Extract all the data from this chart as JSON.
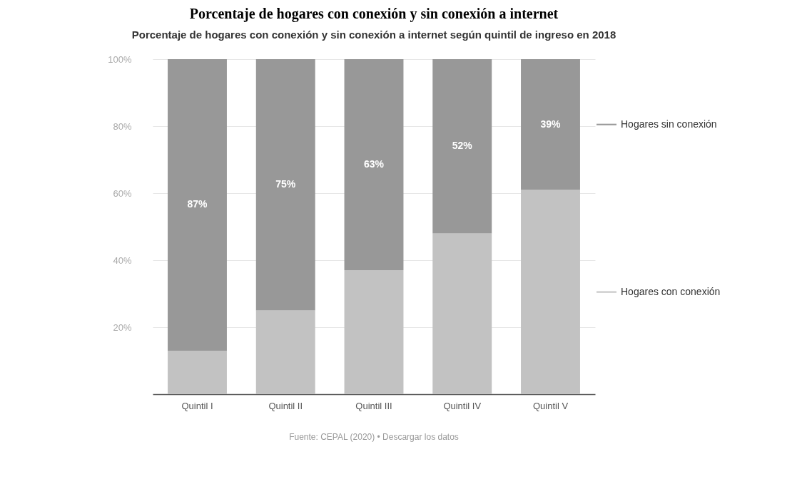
{
  "chart_data": {
    "type": "bar",
    "title": "Porcentaje de hogares con conexión y sin conexión a internet",
    "subtitle": "Porcentaje de hogares con conexión y sin conexión a internet según quintil de ingreso en 2018",
    "categories": [
      "Quintil I",
      "Quintil II",
      "Quintil III",
      "Quintil IV",
      "Quintil V"
    ],
    "stacked": true,
    "series": [
      {
        "name": "Hogares con conexión",
        "color": "#c2c2c2",
        "values": [
          13,
          25,
          37,
          48,
          61
        ]
      },
      {
        "name": "Hogares sin conexión",
        "color": "#989898",
        "values": [
          87,
          75,
          63,
          52,
          39
        ],
        "value_labels": [
          "87%",
          "75%",
          "63%",
          "52%",
          "39%"
        ]
      }
    ],
    "ylim": [
      0,
      100
    ],
    "yticks": [
      {
        "value": 20,
        "label": "20%"
      },
      {
        "value": 40,
        "label": "40%"
      },
      {
        "value": 60,
        "label": "60%"
      },
      {
        "value": 80,
        "label": "80%"
      },
      {
        "value": 100,
        "label": "100%"
      }
    ],
    "grid": "y",
    "legend": "right",
    "annotations": [
      "Fuente: CEPAL (2020) • Descargar los datos"
    ]
  }
}
